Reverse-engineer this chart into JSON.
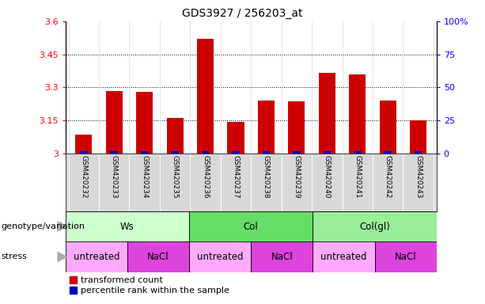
{
  "title": "GDS3927 / 256203_at",
  "samples": [
    "GSM420232",
    "GSM420233",
    "GSM420234",
    "GSM420235",
    "GSM420236",
    "GSM420237",
    "GSM420238",
    "GSM420239",
    "GSM420240",
    "GSM420241",
    "GSM420242",
    "GSM420243"
  ],
  "red_values": [
    3.085,
    3.285,
    3.28,
    3.16,
    3.52,
    3.145,
    3.24,
    3.235,
    3.365,
    3.36,
    3.24,
    3.15
  ],
  "blue_pct": [
    2.0,
    2.0,
    2.0,
    2.0,
    2.0,
    2.0,
    2.0,
    2.0,
    2.0,
    2.0,
    2.0,
    2.0
  ],
  "ylim": [
    3.0,
    3.6
  ],
  "yticks_left": [
    3.0,
    3.15,
    3.3,
    3.45,
    3.6
  ],
  "yticks_right": [
    0,
    25,
    50,
    75,
    100
  ],
  "ytick_labels_left": [
    "3",
    "3.15",
    "3.3",
    "3.45",
    "3.6"
  ],
  "ytick_labels_right": [
    "0",
    "25",
    "50",
    "75",
    "100%"
  ],
  "bar_bottom": 3.0,
  "red_color": "#cc0000",
  "blue_color": "#0000bb",
  "groups": [
    {
      "label": "Ws",
      "start": 0,
      "end": 4,
      "color": "#ccffcc"
    },
    {
      "label": "Col",
      "start": 4,
      "end": 8,
      "color": "#66dd66"
    },
    {
      "label": "Col(gl)",
      "start": 8,
      "end": 12,
      "color": "#99ee99"
    }
  ],
  "stress_groups": [
    {
      "label": "untreated",
      "start": 0,
      "end": 2,
      "color": "#ffaaff"
    },
    {
      "label": "NaCl",
      "start": 2,
      "end": 4,
      "color": "#dd44dd"
    },
    {
      "label": "untreated",
      "start": 4,
      "end": 6,
      "color": "#ffaaff"
    },
    {
      "label": "NaCl",
      "start": 6,
      "end": 8,
      "color": "#dd44dd"
    },
    {
      "label": "untreated",
      "start": 8,
      "end": 10,
      "color": "#ffaaff"
    },
    {
      "label": "NaCl",
      "start": 10,
      "end": 12,
      "color": "#dd44dd"
    }
  ],
  "genotype_label": "genotype/variation",
  "stress_label": "stress",
  "legend_red": "transformed count",
  "legend_blue": "percentile rank within the sample",
  "bar_width": 0.55,
  "title_fontsize": 10,
  "tick_fontsize": 8,
  "sample_fontsize": 6.5,
  "band_fontsize": 8.5,
  "side_label_fontsize": 8,
  "legend_fontsize": 8
}
